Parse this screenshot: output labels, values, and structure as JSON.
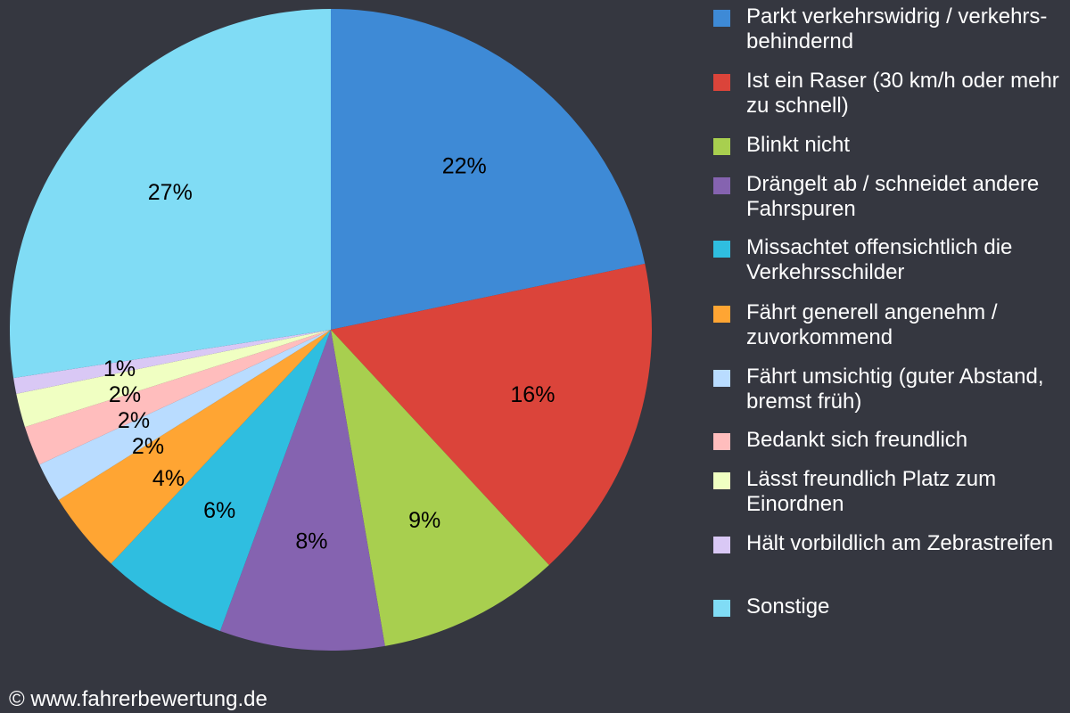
{
  "chart_data": {
    "type": "pie",
    "start": "top",
    "direction": "clockwise",
    "legend_position": "right",
    "categories": [
      "Parkt verkehrswidrig / verkehrs-behindernd",
      "Ist ein Raser (30 km/h oder mehr zu schnell)",
      "Blinkt nicht",
      "Drängelt ab / schneidet andere Fahrspuren",
      "Missachtet offensichtlich die Verkehrsschilder",
      "Fährt generell angenehm / zuvorkommend",
      "Fährt umsichtig (guter Abstand, bremst früh)",
      "Bedankt sich freundlich",
      "Lässt freundlich Platz zum Einordnen",
      "Hält vorbildlich am Zebrastreifen",
      "Sonstige"
    ],
    "values": [
      21.7,
      16.4,
      9.2,
      8.3,
      6.4,
      4.1,
      2.0,
      2.0,
      1.7,
      0.8,
      27.4
    ],
    "labels": [
      "22%",
      "16%",
      "9%",
      "8%",
      "6%",
      "4%",
      "2%",
      "2%",
      "2%",
      "1%",
      "27%"
    ],
    "colors": [
      "#3e8ad6",
      "#db443a",
      "#a8cf4f",
      "#8563b0",
      "#2fbee0",
      "#ffa533",
      "#b9dcff",
      "#ffbdbd",
      "#f0ffc2",
      "#d9c8f5",
      "#80dcf5"
    ]
  },
  "footer": "© www.fahrerbewertung.de"
}
